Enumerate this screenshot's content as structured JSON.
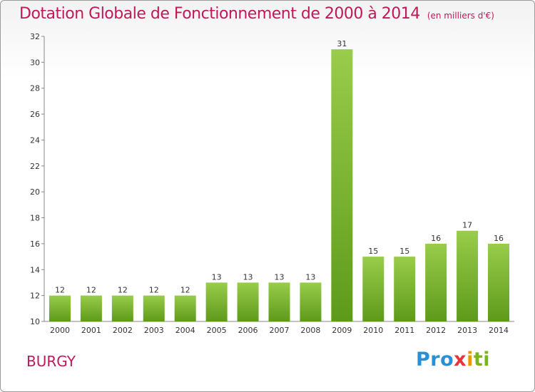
{
  "chart_data": {
    "type": "bar",
    "title": "Dotation Globale de Fonctionnement de 2000 à 2014",
    "subtitle": "(en milliers d'€)",
    "categories": [
      "2000",
      "2001",
      "2002",
      "2003",
      "2004",
      "2005",
      "2006",
      "2007",
      "2008",
      "2009",
      "2010",
      "2011",
      "2012",
      "2013",
      "2014"
    ],
    "values": [
      12,
      12,
      12,
      12,
      12,
      13,
      13,
      13,
      13,
      31,
      15,
      15,
      16,
      17,
      16
    ],
    "ylim": [
      10,
      32
    ],
    "yticks": [
      10,
      12,
      14,
      16,
      18,
      20,
      22,
      24,
      26,
      28,
      30,
      32
    ],
    "xlabel": "",
    "ylabel": "",
    "grid": false,
    "bar_color_top": "#99cc4a",
    "bar_color_bottom": "#5e9a1a"
  },
  "footer": {
    "commune": "BURGY",
    "logo_parts": [
      "Pro",
      "x",
      "i",
      "ti"
    ]
  }
}
